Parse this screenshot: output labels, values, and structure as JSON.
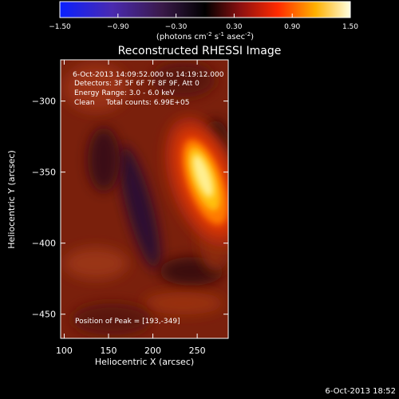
{
  "chart_data": {
    "type": "heatmap",
    "title": "Reconstructed RHESSI Image",
    "xlabel": "Heliocentric X (arcsec)",
    "ylabel": "Heliocentric Y (arcsec)",
    "xlim": [
      96,
      285
    ],
    "ylim": [
      -467,
      -271
    ],
    "xticks": [
      100,
      150,
      200,
      250
    ],
    "yticks": [
      -300,
      -350,
      -400,
      -450
    ],
    "colorbar": {
      "range": [
        -1.5,
        1.5
      ],
      "ticks": [
        "-1.50",
        "-0.90",
        "-0.30",
        "0.30",
        "0.90",
        "1.50"
      ],
      "label_main": "(photons cm",
      "label_sup1": "-2",
      "label_mid1": " s",
      "label_sup2": "-1",
      "label_mid2": " asec",
      "label_sup3": "-2",
      "label_end": ")"
    },
    "annotations": [
      "6-Oct-2013 14:09:52.000 to 14:19:12.000",
      "Detectors: 3F 5F 6F 7F 8F 9F, Att 0",
      "Energy Range: 3.0 - 6.0 keV",
      "Clean     Total counts: 6.99E+05"
    ],
    "peak_label": "Position of Peak = [193,-349]",
    "source": {
      "peak_x": 193,
      "peak_y": -349,
      "peak_value": 1.5
    },
    "footer": "6-Oct-2013 18:52"
  }
}
